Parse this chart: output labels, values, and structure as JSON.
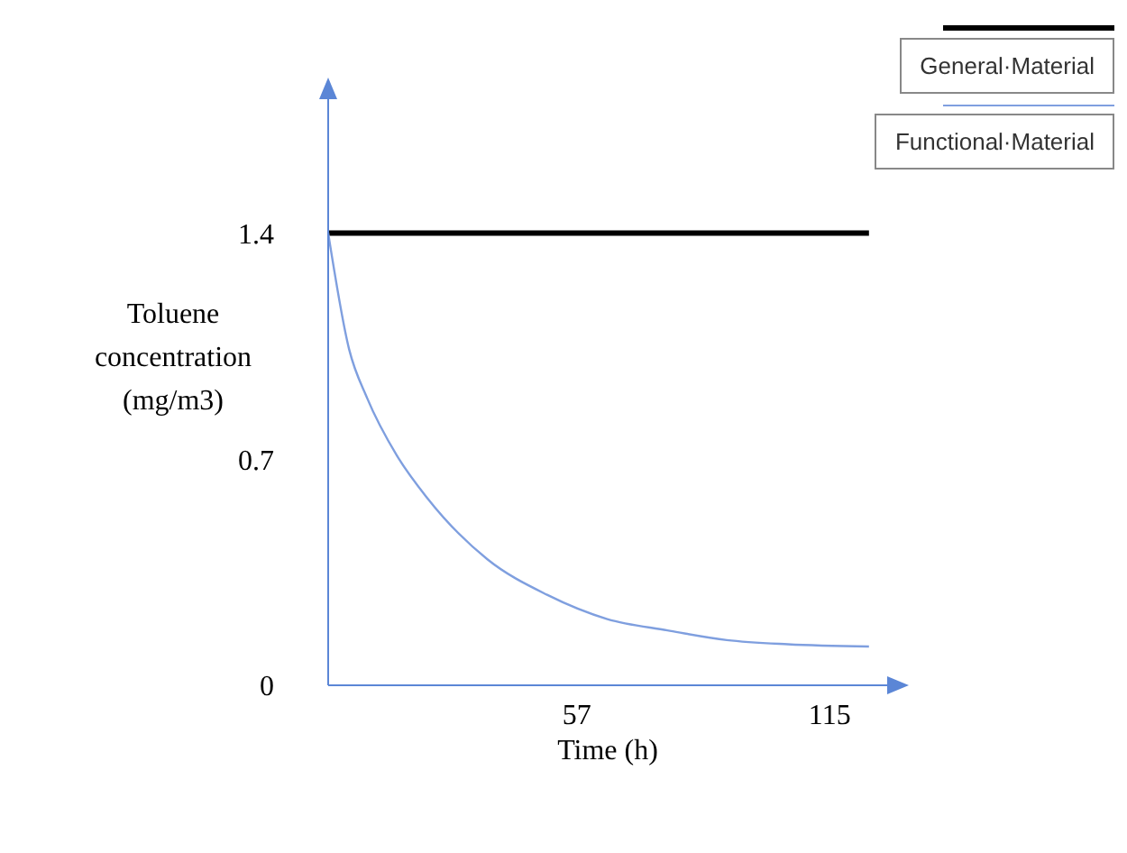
{
  "chart_data": {
    "type": "line",
    "xlabel": "Time (h)",
    "ylabel": "Toluene concentration (mg/m3)",
    "xlim": [
      0,
      129
    ],
    "ylim": [
      0,
      1.87
    ],
    "xticks": [
      57,
      115
    ],
    "yticks": [
      0,
      0.7,
      1.4
    ],
    "grid": false,
    "legend": "top right",
    "marker": "none",
    "line_style": "solid",
    "series": [
      {
        "name": "General·Material",
        "color": "#000000",
        "x": [
          0,
          124
        ],
        "values": [
          1.4,
          1.4
        ]
      },
      {
        "name": "Functional·Material",
        "color": "#7f9fdf",
        "x": [
          0,
          4.8,
          8.9,
          15.8,
          22.7,
          36.5,
          50.2,
          64,
          77.8,
          91.4,
          105.4,
          124
        ],
        "values": [
          1.4,
          1.04,
          0.89,
          0.71,
          0.58,
          0.39,
          0.28,
          0.205,
          0.17,
          0.14,
          0.127,
          0.12
        ]
      }
    ]
  }
}
